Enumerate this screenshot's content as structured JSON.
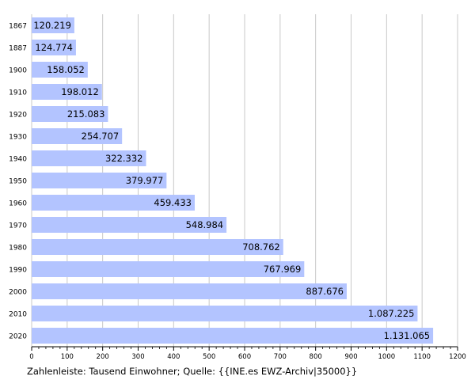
{
  "chart_data": {
    "type": "bar",
    "orientation": "horizontal",
    "categories": [
      "1867",
      "1887",
      "1900",
      "1910",
      "1920",
      "1930",
      "1940",
      "1950",
      "1960",
      "1970",
      "1980",
      "1990",
      "2000",
      "2010",
      "2020"
    ],
    "values": [
      120.219,
      124.774,
      158.052,
      198.012,
      215.083,
      254.707,
      322.332,
      379.977,
      459.433,
      548.984,
      708.762,
      767.969,
      887.676,
      1087.225,
      1131.065
    ],
    "value_labels": [
      "120.219",
      "124.774",
      "158.052",
      "198.012",
      "215.083",
      "254.707",
      "322.332",
      "379.977",
      "459.433",
      "548.984",
      "708.762",
      "767.969",
      "887.676",
      "1.087.225",
      "1.131.065"
    ],
    "xlim": [
      0,
      1200
    ],
    "x_ticks": [
      0,
      100,
      200,
      300,
      400,
      500,
      600,
      700,
      800,
      900,
      1000,
      1100,
      1200
    ],
    "grid": true,
    "bar_color": "#b3c4ff",
    "grid_color": "#c8c8c8"
  },
  "caption": "Zahlenleiste: Tausend Einwohner; Quelle: {{INE.es EWZ-Archiv|35000}}"
}
